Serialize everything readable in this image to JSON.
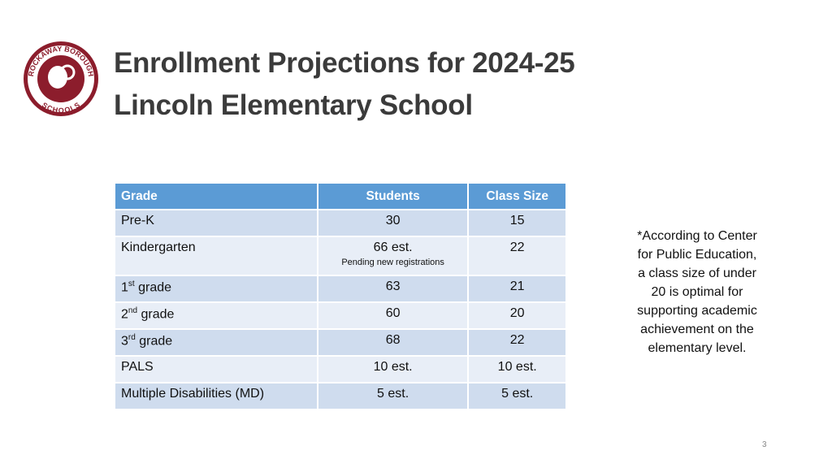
{
  "logo": {
    "top_text": "ROCKAWAY BOROUGH",
    "bottom_text": "SCHOOLS"
  },
  "header": {
    "title_lines": [
      "Enrollment Projections for 2024-25",
      "Lincoln Elementary School"
    ]
  },
  "table": {
    "columns": [
      "Grade",
      "Students",
      "Class Size"
    ],
    "rows": [
      [
        "Pre-K",
        30,
        15
      ],
      [
        "Kindergarten",
        {
          "text": "66 est.",
          "note": "Pending new registrations"
        },
        22
      ],
      [
        {
          "num": "1",
          "sup": "st",
          "text": " grade"
        },
        63,
        21
      ],
      [
        {
          "num": "2",
          "sup": "nd",
          "text": " grade"
        },
        60,
        20
      ],
      [
        {
          "num": "3",
          "sup": "rd",
          "text": " grade"
        },
        68,
        22
      ],
      [
        "PALS",
        "10 est.",
        "10 est."
      ],
      [
        "Multiple Disabilities (MD)",
        "5 est.",
        "5 est."
      ]
    ]
  },
  "note": {
    "lines": [
      "*According to Center",
      "for Public Education,",
      "a class size of under",
      "20 is optimal for",
      "supporting academic",
      "achievement on the",
      "elementary level."
    ]
  },
  "page_number": 3
}
